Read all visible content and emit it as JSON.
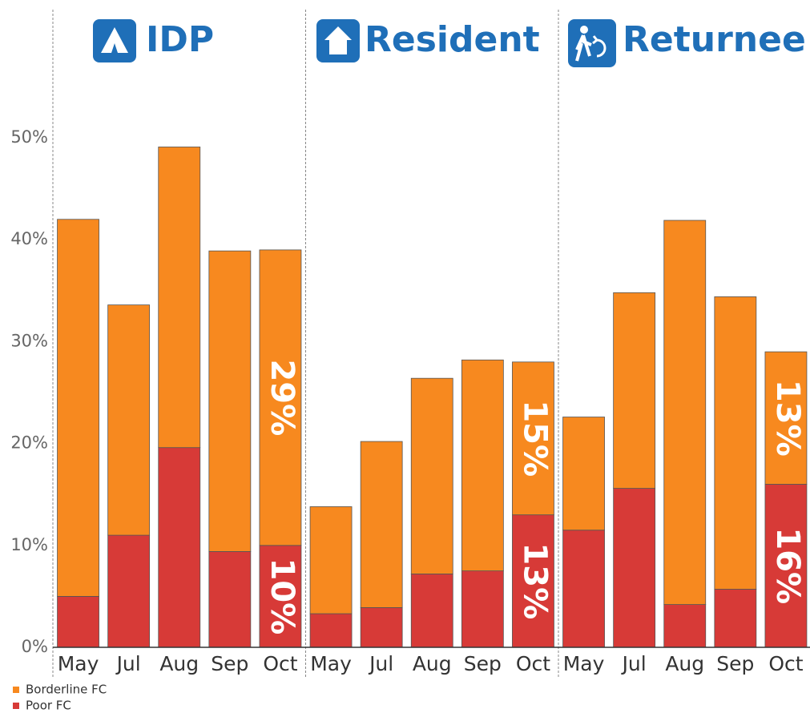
{
  "chart_data": [
    {
      "type": "bar",
      "title": "IDP",
      "categories": [
        "May",
        "Jul",
        "Aug",
        "Sep",
        "Oct"
      ],
      "series": [
        {
          "name": "Borderline FC",
          "color": "#f7891f",
          "values": [
            37,
            22.6,
            29.5,
            29.5,
            29
          ],
          "value_labels": [
            null,
            null,
            null,
            null,
            "29%"
          ]
        },
        {
          "name": "Poor FC",
          "color": "#d73a37",
          "values": [
            5,
            11,
            19.6,
            9.4,
            10
          ],
          "value_labels": [
            null,
            null,
            null,
            null,
            "10%"
          ]
        }
      ],
      "ylim": [
        0,
        50
      ],
      "yticks": [
        {
          "value": 0,
          "label": "0%"
        },
        {
          "value": 10,
          "label": "10%"
        },
        {
          "value": 20,
          "label": "20%"
        },
        {
          "value": 30,
          "label": "30%"
        },
        {
          "value": 40,
          "label": "40%"
        },
        {
          "value": 50,
          "label": "50%"
        }
      ]
    },
    {
      "type": "bar",
      "title": "Resident",
      "categories": [
        "May",
        "Jul",
        "Aug",
        "Sep",
        "Oct"
      ],
      "series": [
        {
          "name": "Borderline FC",
          "color": "#f7891f",
          "values": [
            10.5,
            16.3,
            19.2,
            20.7,
            15
          ],
          "value_labels": [
            null,
            null,
            null,
            null,
            "15%"
          ]
        },
        {
          "name": "Poor FC",
          "color": "#d73a37",
          "values": [
            3.3,
            3.9,
            7.2,
            7.5,
            13
          ],
          "value_labels": [
            null,
            null,
            null,
            null,
            "13%"
          ]
        }
      ],
      "ylim": [
        0,
        50
      ]
    },
    {
      "type": "bar",
      "title": "Returnee",
      "categories": [
        "May",
        "Jul",
        "Aug",
        "Sep",
        "Oct"
      ],
      "series": [
        {
          "name": "Borderline FC",
          "color": "#f7891f",
          "values": [
            11.1,
            19.2,
            37.7,
            28.7,
            13
          ],
          "value_labels": [
            null,
            null,
            null,
            null,
            "13%"
          ]
        },
        {
          "name": "Poor FC",
          "color": "#d73a37",
          "values": [
            11.5,
            15.6,
            4.2,
            5.7,
            16
          ],
          "value_labels": [
            null,
            null,
            null,
            null,
            "16%"
          ]
        }
      ],
      "ylim": [
        0,
        50
      ]
    }
  ]
}
